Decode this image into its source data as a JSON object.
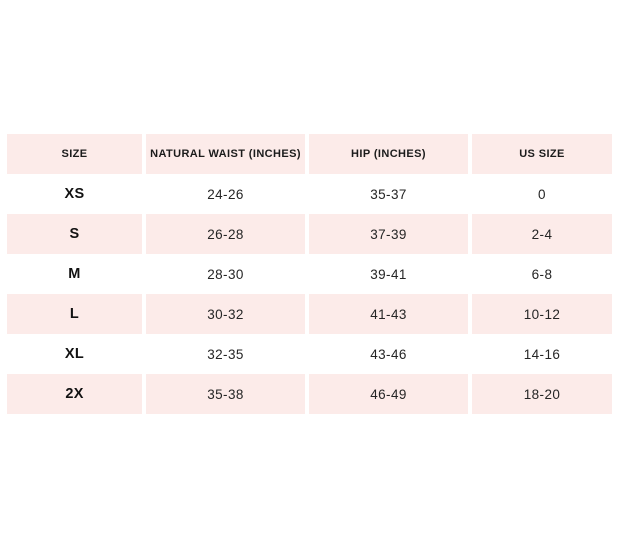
{
  "chart_data": {
    "type": "table",
    "title": "",
    "columns": [
      "SIZE",
      "NATURAL WAIST (INCHES)",
      "HIP (INCHES)",
      "US SIZE"
    ],
    "rows": [
      [
        "XS",
        "24-26",
        "35-37",
        "0"
      ],
      [
        "S",
        "26-28",
        "37-39",
        "2-4"
      ],
      [
        "M",
        "28-30",
        "39-41",
        "6-8"
      ],
      [
        "L",
        "30-32",
        "41-43",
        "10-12"
      ],
      [
        "XL",
        "32-35",
        "43-46",
        "14-16"
      ],
      [
        "2X",
        "35-38",
        "46-49",
        "18-20"
      ]
    ],
    "layout": {
      "striped": true,
      "stripe_pattern": "header pink, then white/pink alternating starting white"
    }
  },
  "colors": {
    "row_pink": "#fcebe9",
    "page_background": "#ffffff",
    "text_dark": "#1b1b1b"
  }
}
